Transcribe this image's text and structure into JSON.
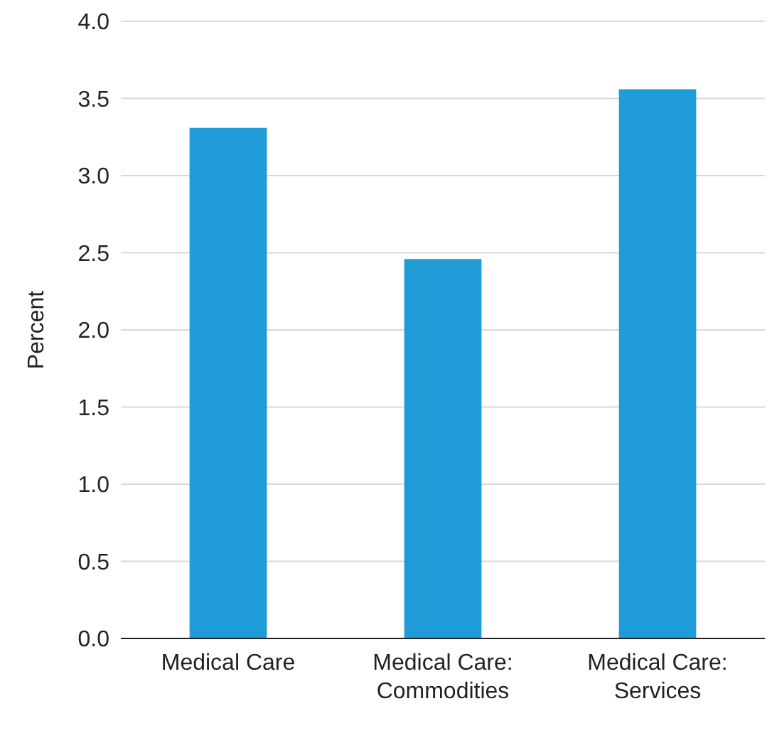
{
  "chart_data": {
    "type": "bar",
    "ylabel": "Percent",
    "categories": [
      "Medical Care",
      "Medical Care: Commodities",
      "Medical Care: Services"
    ],
    "values": [
      3.31,
      2.46,
      3.56
    ],
    "color": "#1f9bd7",
    "ylim": [
      0,
      4
    ],
    "yticks": [
      {
        "value": 0,
        "label": "0.0"
      },
      {
        "value": 0.5,
        "label": "0.5"
      },
      {
        "value": 1,
        "label": "1.0"
      },
      {
        "value": 1.5,
        "label": "1.5"
      },
      {
        "value": 2,
        "label": "2.0"
      },
      {
        "value": 2.5,
        "label": "2.5"
      },
      {
        "value": 3,
        "label": "3.0"
      },
      {
        "value": 3.5,
        "label": "3.5"
      },
      {
        "value": 4,
        "label": "4.0"
      }
    ],
    "grid": "y"
  }
}
